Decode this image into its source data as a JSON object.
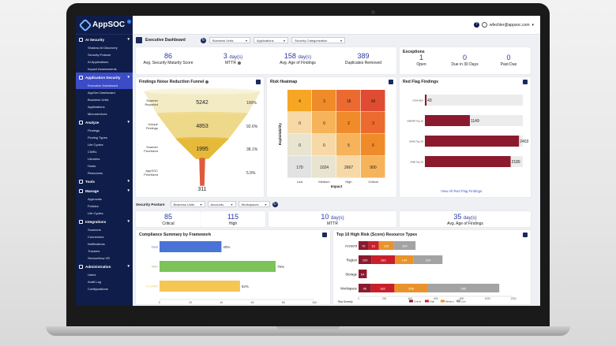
{
  "app": {
    "name": "AppSOC",
    "user": "wfechler@appsoc.com"
  },
  "sidebar": {
    "sections": [
      {
        "name": "AI Security",
        "items": [
          "Shadow AI Discovery",
          "Security Posture",
          "AI Applications",
          "Impact Assessments"
        ]
      },
      {
        "name": "Application Security",
        "items": [
          "Executive Dashboard",
          "AppSec Dashboard",
          "Business Units",
          "Applications",
          "Microservices"
        ]
      },
      {
        "name": "Analyze",
        "items": [
          "Findings",
          "Finding Types",
          "Life Cycles",
          "CWEs",
          "Libraries",
          "Hosts",
          "Resources"
        ]
      },
      {
        "name": "Tools",
        "items": []
      },
      {
        "name": "Manage",
        "items": [
          "Approvals",
          "Policies",
          "Life Cycles"
        ]
      },
      {
        "name": "Integrations",
        "items": [
          "Scanners",
          "Connectors",
          "Notifications",
          "Trackers",
          "ServiceNow VR"
        ]
      },
      {
        "name": "Administration",
        "items": [
          "Users",
          "Audit Log",
          "Configurations"
        ]
      }
    ],
    "active_item": "Executive Dashboard"
  },
  "toolbar": {
    "title": "Executive Dashboard",
    "filters": [
      "Business Units",
      "Applications",
      "Security Categorization"
    ]
  },
  "kpis": [
    {
      "value": "86",
      "unit": "",
      "label": "Avg. Security Maturity Score"
    },
    {
      "value": "3",
      "unit": "day(s)",
      "label": "MTTR"
    },
    {
      "value": "158",
      "unit": "day(s)",
      "label": "Avg. Age of Findings"
    },
    {
      "value": "389",
      "unit": "",
      "label": "Duplicates Removed"
    }
  ],
  "exceptions": {
    "title": "Exceptions",
    "items": [
      {
        "value": "1",
        "label": "Open"
      },
      {
        "value": "0",
        "label": "Due in 30 Days"
      },
      {
        "value": "0",
        "label": "Past Due"
      }
    ]
  },
  "funnel": {
    "title": "Findings Noise Reduction Funnel",
    "stages": [
      {
        "label": "Scanner Reported",
        "value": "5242",
        "pct": "100%"
      },
      {
        "label": "Unique Findings",
        "value": "4853",
        "pct": "92.6%"
      },
      {
        "label": "Scanner Prioritized",
        "value": "1995",
        "pct": "38.1%"
      },
      {
        "label": "AppSOC Prioritized",
        "value": "311",
        "pct": "5.9%"
      }
    ],
    "colors": [
      "#f2ebc4",
      "#eed98a",
      "#e6b93a",
      "#e05a3a"
    ]
  },
  "heatmap": {
    "title": "Risk Heatmap",
    "ylabel": "Exploitability",
    "xlabel": "Impact",
    "xticks": [
      "Low",
      "Medium",
      "High",
      "Critical"
    ],
    "rows": [
      [
        "4",
        "3",
        "18",
        "49"
      ],
      [
        "0",
        "0",
        "2",
        "3"
      ],
      [
        "0",
        "0",
        "5",
        "6"
      ],
      [
        "170",
        "1024",
        "2667",
        "900"
      ]
    ],
    "cell_colors": [
      [
        "#f6a623",
        "#f08b2a",
        "#ec6a2f",
        "#e04b33"
      ],
      [
        "#f7d9a8",
        "#f6b35a",
        "#f08b2a",
        "#ec6a2f"
      ],
      [
        "#e8e4cf",
        "#f7d9a8",
        "#f6b35a",
        "#f08b2a"
      ],
      [
        "#e2e2e2",
        "#e8e4cf",
        "#f7d9a8",
        "#f6b35a"
      ]
    ]
  },
  "red_flag": {
    "title": "Red Flag Findings",
    "link": "View All Red Flag Findings",
    "categories": [
      "CISA KEV",
      "OWASP Top 10",
      "SANS Top 25",
      "CWE Top 25"
    ],
    "values": [
      43,
      1149,
      2403,
      2189
    ],
    "xmax": 2500,
    "color": "#8b1a2e"
  },
  "security_posture": {
    "title": "Security Posture",
    "filters": [
      "Business Units",
      "Accounts",
      "Workspaces"
    ],
    "kpis": [
      {
        "value": "85",
        "unit": "",
        "label": "Critical"
      },
      {
        "value": "115",
        "unit": "",
        "label": "High"
      },
      {
        "value": "10",
        "unit": "day(s)",
        "label": "MTTR"
      },
      {
        "value": "35",
        "unit": "day(s)",
        "label": "Avg. Age of Findings"
      }
    ]
  },
  "chart_data": [
    {
      "type": "bar",
      "title": "Compliance Summary by Framework",
      "orientation": "horizontal",
      "categories": [
        "SaaS",
        "NIST",
        "AI-CSRM"
      ],
      "values": [
        40,
        75,
        52
      ],
      "labels": [
        "40%",
        "75%",
        "52%"
      ],
      "xticks": [
        "0",
        "20",
        "40",
        "60",
        "80",
        "100"
      ],
      "xlim": [
        0,
        100
      ],
      "colors": [
        "#4a73d6",
        "#7cc35a",
        "#f6c655"
      ]
    },
    {
      "type": "bar",
      "stacked": true,
      "orientation": "horizontal",
      "title": "Top 10 High Risk (Score) Resource Types",
      "categories": [
        "Account",
        "Region",
        "Storage",
        "Workspace"
      ],
      "series": [
        {
          "name": "Critical",
          "color": "#8b1a2e",
          "values": [
            76,
            100,
            64,
            96
          ]
        },
        {
          "name": "High",
          "color": "#c91f2c",
          "values": [
            81,
            183,
            0,
            182
          ]
        },
        {
          "name": "Medium",
          "color": "#e8932b",
          "values": [
            116,
            144,
            0,
            258
          ]
        },
        {
          "name": "Low",
          "color": "#a3a3a3",
          "values": [
            169,
            224,
            0,
            555
          ]
        }
      ],
      "xticks": [
        "0",
        "200",
        "400",
        "600",
        "800",
        "1000",
        "1200"
      ],
      "xlim": [
        0,
        1200
      ],
      "legend_title": "Risk Severity",
      "legend": "bottom"
    }
  ]
}
